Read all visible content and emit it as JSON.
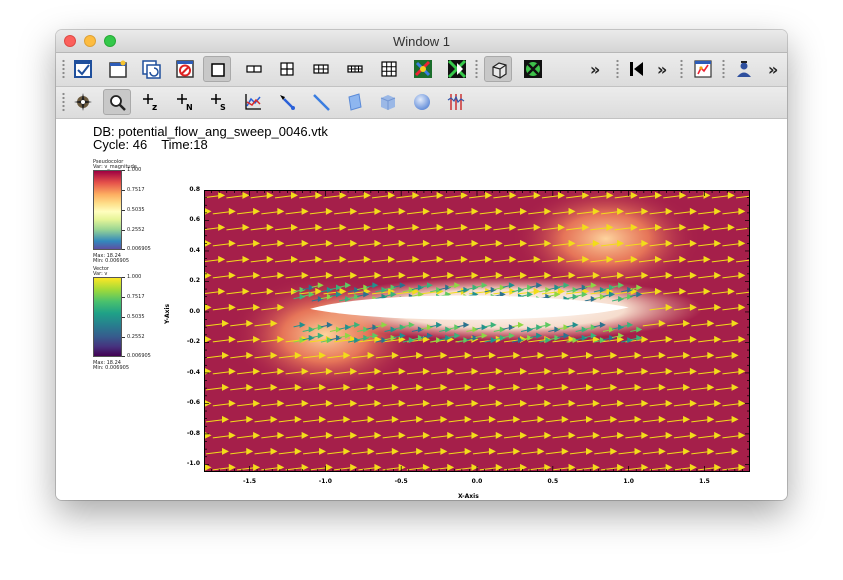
{
  "window": {
    "title": "Window 1"
  },
  "toolbar_main": {
    "buttons": [
      "apply-icon",
      "new-window-icon",
      "refresh-window-icon",
      "clear-window-icon",
      "layout-1x1-icon",
      "layout-1x2-icon",
      "layout-2x2-icon",
      "layout-2x3-icon",
      "layout-2x4-icon",
      "layout-3x3-icon",
      "lock-view-icon",
      "lock-time-icon",
      "view-3d-icon",
      "spin-icon",
      "reverse-play-icon",
      "play-icon",
      "plot-attributes-icon",
      "user-icon"
    ],
    "more": "»"
  },
  "toolbar_interact": {
    "buttons": [
      "navigate-icon",
      "zoom-icon",
      "zone-pick-z-icon",
      "node-pick-n-icon",
      "spreadsheet-pick-s-icon",
      "lineout-icon",
      "point-tool-icon",
      "line-tool-icon",
      "plane-tool-icon",
      "box-tool-icon",
      "sphere-tool-icon",
      "axis-restrict-icon"
    ]
  },
  "header": {
    "db": "DB: potential_flow_ang_sweep_0046.vtk",
    "cycle": "Cycle: 46",
    "time": "Time:18"
  },
  "legends": [
    {
      "plot": "Pseudocolor",
      "var": "Var: v_magnitude",
      "ticks": [
        "1.000",
        "0.7517",
        "0.5035",
        "0.2552",
        "0.006905"
      ],
      "max": "Max: 18.24",
      "min": "Min: 0.006905",
      "colormap": "spectral"
    },
    {
      "plot": "Vector",
      "var": "Var: v",
      "ticks": [
        "1.000",
        "0.7517",
        "0.5035",
        "0.2552",
        "0.006905"
      ],
      "max": "Max: 18.24",
      "min": "Min: 0.006905",
      "colormap": "viridis"
    }
  ],
  "chart_data": {
    "type": "pseudocolor-vector",
    "xlabel": "X-Axis",
    "ylabel": "Y-Axis",
    "xlim": [
      -1.8,
      1.8
    ],
    "ylim": [
      -1.05,
      0.8
    ],
    "xticks": [
      "-1.5",
      "-1.0",
      "-0.5",
      "0.0",
      "0.5",
      "1.0",
      "1.5"
    ],
    "yticks": [
      "0.8",
      "0.6",
      "0.4",
      "0.2",
      "0.0",
      "-0.2",
      "-0.4",
      "-0.6",
      "-0.8",
      "-1.0"
    ],
    "xtick_values": [
      -1.5,
      -1.0,
      -0.5,
      0.0,
      0.5,
      1.0,
      1.5
    ],
    "ytick_values": [
      0.8,
      0.6,
      0.4,
      0.2,
      0.0,
      -0.2,
      -0.4,
      -0.6,
      -0.8,
      -1.0
    ],
    "background_color": "#a51f4a",
    "vector_color": "#f2dc1a"
  }
}
